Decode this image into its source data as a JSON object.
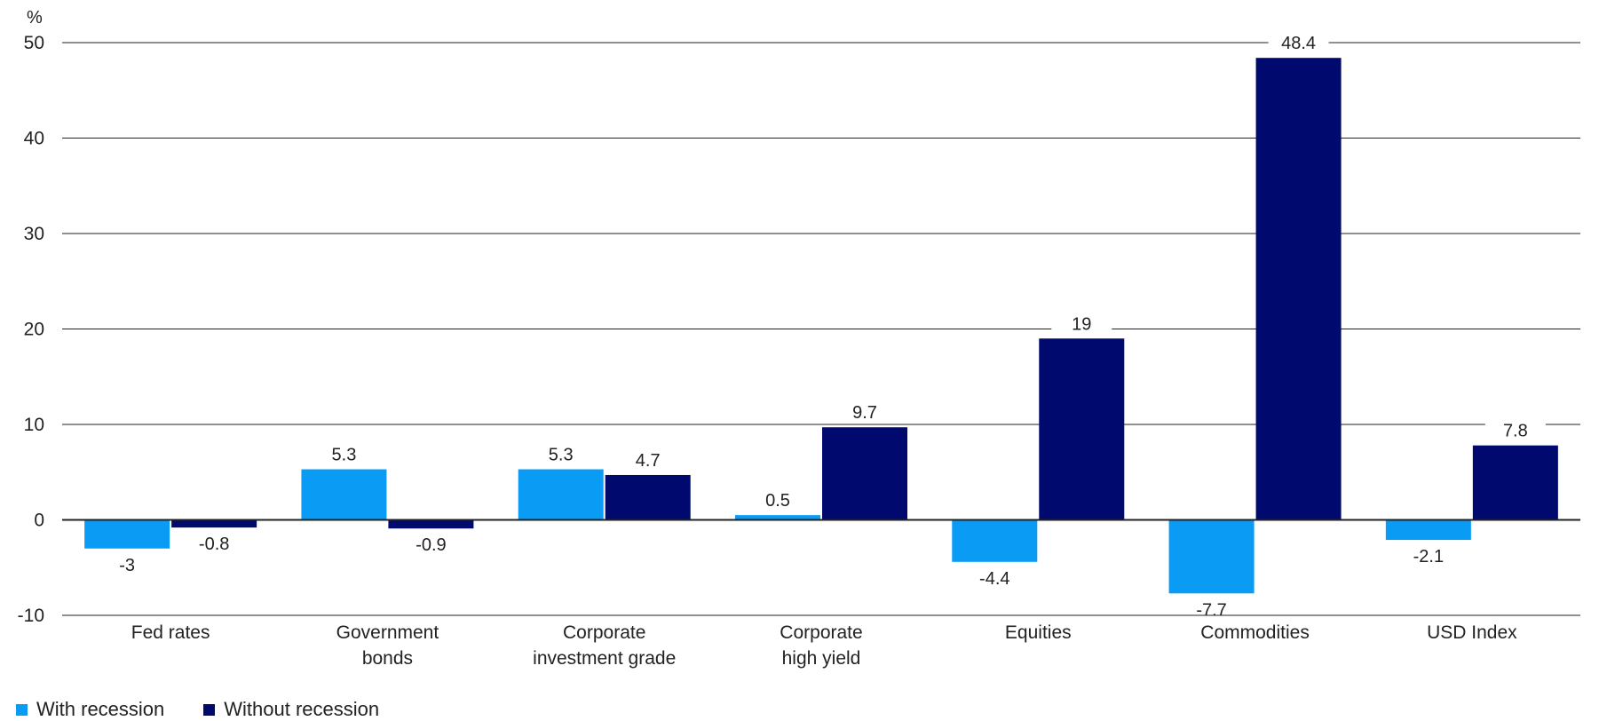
{
  "chart_data": {
    "type": "bar",
    "unit_label": "%",
    "categories": [
      "Fed rates",
      "Government bonds",
      "Corporate investment grade",
      "Corporate high yield",
      "Equities",
      "Commodities",
      "USD Index"
    ],
    "category_lines": [
      [
        "Fed rates"
      ],
      [
        "Government",
        "bonds"
      ],
      [
        "Corporate",
        "investment grade"
      ],
      [
        "Corporate",
        "high yield"
      ],
      [
        "Equities"
      ],
      [
        "Commodities"
      ],
      [
        "USD Index"
      ]
    ],
    "series": [
      {
        "name": "With recession",
        "color": "#0a9cf5",
        "values": [
          -3,
          5.3,
          5.3,
          0.5,
          -4.4,
          -7.7,
          -2.1
        ]
      },
      {
        "name": "Without recession",
        "color": "#000a6e",
        "values": [
          -0.8,
          -0.9,
          4.7,
          9.7,
          19,
          48.4,
          7.8
        ]
      }
    ],
    "ylim": [
      -10,
      50
    ],
    "yticks": [
      -10,
      0,
      10,
      20,
      30,
      40,
      50
    ],
    "grid": true,
    "legend_position": "bottom-left"
  }
}
